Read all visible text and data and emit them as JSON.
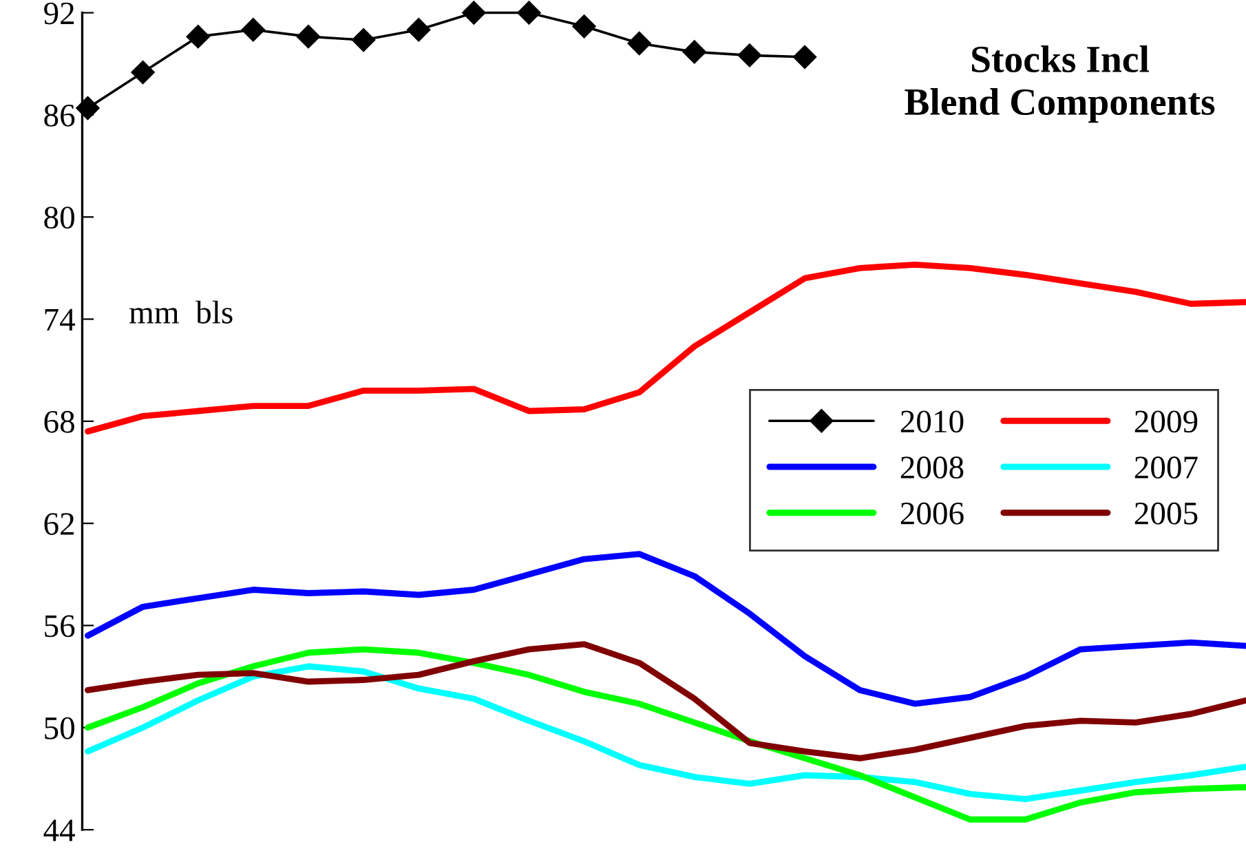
{
  "chart_data": {
    "type": "line",
    "title": "Stocks Incl\nBlend Components",
    "annotations": [
      "mm  bls"
    ],
    "categories": [
      null,
      null,
      null,
      null,
      null,
      null,
      null,
      null,
      null,
      null,
      null,
      null,
      null,
      null,
      null,
      null,
      null,
      null,
      null,
      null,
      null,
      null
    ],
    "ylim": [
      44,
      92
    ],
    "yticks": [
      44,
      50,
      56,
      62,
      68,
      74,
      80,
      86,
      92
    ],
    "grid": false,
    "legend": "right",
    "tick_labels": "y",
    "line_style": "solid",
    "series": [
      {
        "name": "2010",
        "color": "#000000",
        "marker": "diamond",
        "values": [
          86.4,
          88.5,
          90.6,
          91.0,
          90.6,
          90.4,
          91.0,
          92.0,
          92.0,
          91.2,
          90.2,
          89.7,
          89.5,
          89.4,
          null,
          null,
          null,
          null,
          null,
          null,
          null,
          null
        ]
      },
      {
        "name": "2009",
        "color": "#ff0000",
        "marker": "none",
        "values": [
          67.4,
          68.3,
          68.6,
          68.9,
          68.9,
          69.8,
          69.8,
          69.9,
          68.6,
          68.7,
          69.7,
          72.4,
          74.4,
          76.4,
          77.0,
          77.2,
          77.0,
          76.6,
          76.1,
          75.6,
          74.9,
          75.0
        ]
      },
      {
        "name": "2008",
        "color": "#0000ff",
        "marker": "none",
        "values": [
          55.4,
          57.1,
          57.6,
          58.1,
          57.9,
          58.0,
          57.8,
          58.1,
          59.0,
          59.9,
          60.2,
          58.9,
          56.7,
          54.2,
          52.2,
          51.4,
          51.8,
          53.0,
          54.6,
          54.8,
          55.0,
          54.8
        ]
      },
      {
        "name": "2007",
        "color": "#00ffff",
        "marker": "none",
        "values": [
          48.6,
          50.0,
          51.6,
          53.0,
          53.6,
          53.3,
          52.3,
          51.7,
          50.4,
          49.2,
          47.8,
          47.1,
          46.7,
          47.2,
          47.1,
          46.8,
          46.1,
          45.8,
          46.3,
          46.8,
          47.2,
          47.7
        ]
      },
      {
        "name": "2006",
        "color": "#00ff00",
        "marker": "none",
        "values": [
          50.0,
          51.2,
          52.6,
          53.6,
          54.4,
          54.6,
          54.4,
          53.8,
          53.1,
          52.1,
          51.4,
          50.3,
          49.2,
          48.2,
          47.2,
          45.9,
          44.6,
          44.6,
          45.6,
          46.2,
          46.4,
          46.5
        ]
      },
      {
        "name": "2005",
        "color": "#800000",
        "marker": "none",
        "values": [
          52.2,
          52.7,
          53.1,
          53.2,
          52.7,
          52.8,
          53.1,
          53.9,
          54.6,
          54.9,
          53.8,
          51.7,
          49.1,
          48.6,
          48.2,
          48.7,
          49.4,
          50.1,
          50.4,
          50.3,
          50.8,
          51.6
        ]
      }
    ]
  }
}
